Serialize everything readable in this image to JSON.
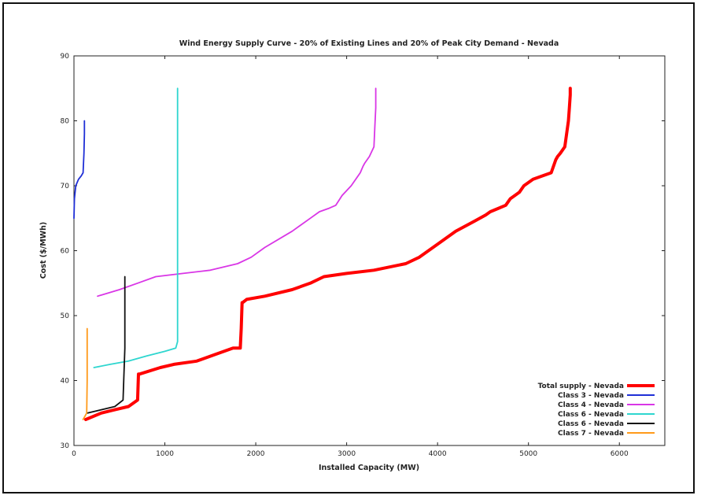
{
  "chart_data": {
    "type": "line",
    "title": "Wind Energy Supply Curve - 20% of Existing Lines and 20% of Peak City Demand - Nevada",
    "xlabel": "Installed Capacity (MW)",
    "ylabel": "Cost ($/MWh)",
    "xlim": [
      0,
      6500
    ],
    "ylim": [
      30,
      90
    ],
    "xticks": [
      0,
      1000,
      2000,
      3000,
      4000,
      5000,
      6000
    ],
    "yticks": [
      30,
      40,
      50,
      60,
      70,
      80,
      90
    ],
    "grid": false,
    "legend_position": "bottom-right",
    "series": [
      {
        "name": "Total supply - Nevada",
        "color": "#ff0000",
        "x": [
          130,
          300,
          450,
          600,
          700,
          710,
          720,
          950,
          1100,
          1350,
          1550,
          1750,
          1830,
          1840,
          1850,
          1855,
          1900,
          2100,
          2400,
          2600,
          2750,
          3000,
          3300,
          3650,
          3800,
          4000,
          4200,
          4400,
          4530,
          4580,
          4750,
          4800,
          4850,
          4900,
          4950,
          5050,
          5150,
          5250,
          5300,
          5320,
          5350,
          5400,
          5420,
          5440,
          5450,
          5460,
          5460
        ],
        "y": [
          34,
          35,
          35.5,
          36,
          37,
          41,
          41,
          42,
          42.5,
          43,
          44,
          45,
          45,
          48,
          52,
          52,
          52.5,
          53,
          54,
          55,
          56,
          56.5,
          57,
          58,
          59,
          61,
          63,
          64.5,
          65.5,
          66,
          67,
          68,
          68.5,
          69,
          70,
          71,
          71.5,
          72,
          74,
          74.5,
          75,
          76,
          78,
          80,
          82,
          84,
          85
        ]
      },
      {
        "name": "Class 3 - Nevada",
        "color": "#1f2fd6",
        "x": [
          0,
          5,
          20,
          50,
          80,
          100,
          110,
          115,
          115
        ],
        "y": [
          65,
          68,
          70,
          71,
          71.5,
          72,
          75,
          78,
          80
        ]
      },
      {
        "name": "Class 4 - Nevada",
        "color": "#d936e6",
        "x": [
          260,
          500,
          700,
          900,
          1200,
          1500,
          1800,
          1950,
          2100,
          2400,
          2600,
          2700,
          2800,
          2880,
          2950,
          3050,
          3150,
          3180,
          3200,
          3250,
          3300,
          3310,
          3320,
          3320
        ],
        "y": [
          53,
          54,
          55,
          56,
          56.5,
          57,
          58,
          59,
          60.5,
          63,
          65,
          66,
          66.5,
          67,
          68.5,
          70,
          72,
          73,
          73.5,
          74.5,
          76,
          79,
          82,
          85
        ]
      },
      {
        "name": "Class 6 - Nevada",
        "color": "#2ed6cf",
        "x": [
          220,
          400,
          600,
          800,
          1000,
          1120,
          1140,
          1140,
          1140,
          1140
        ],
        "y": [
          42,
          42.5,
          43,
          43.8,
          44.5,
          45,
          46,
          60,
          75,
          85
        ]
      },
      {
        "name": "Class 6 - Nevada",
        "color": "#111111",
        "x": [
          150,
          300,
          450,
          540,
          560,
          560,
          560
        ],
        "y": [
          35,
          35.5,
          36,
          37,
          45,
          52,
          56
        ]
      },
      {
        "name": "Class 7 - Nevada",
        "color": "#ff9a1a",
        "x": [
          100,
          120,
          140,
          145,
          145,
          145
        ],
        "y": [
          34,
          34.5,
          35,
          40,
          45,
          48
        ]
      }
    ]
  }
}
